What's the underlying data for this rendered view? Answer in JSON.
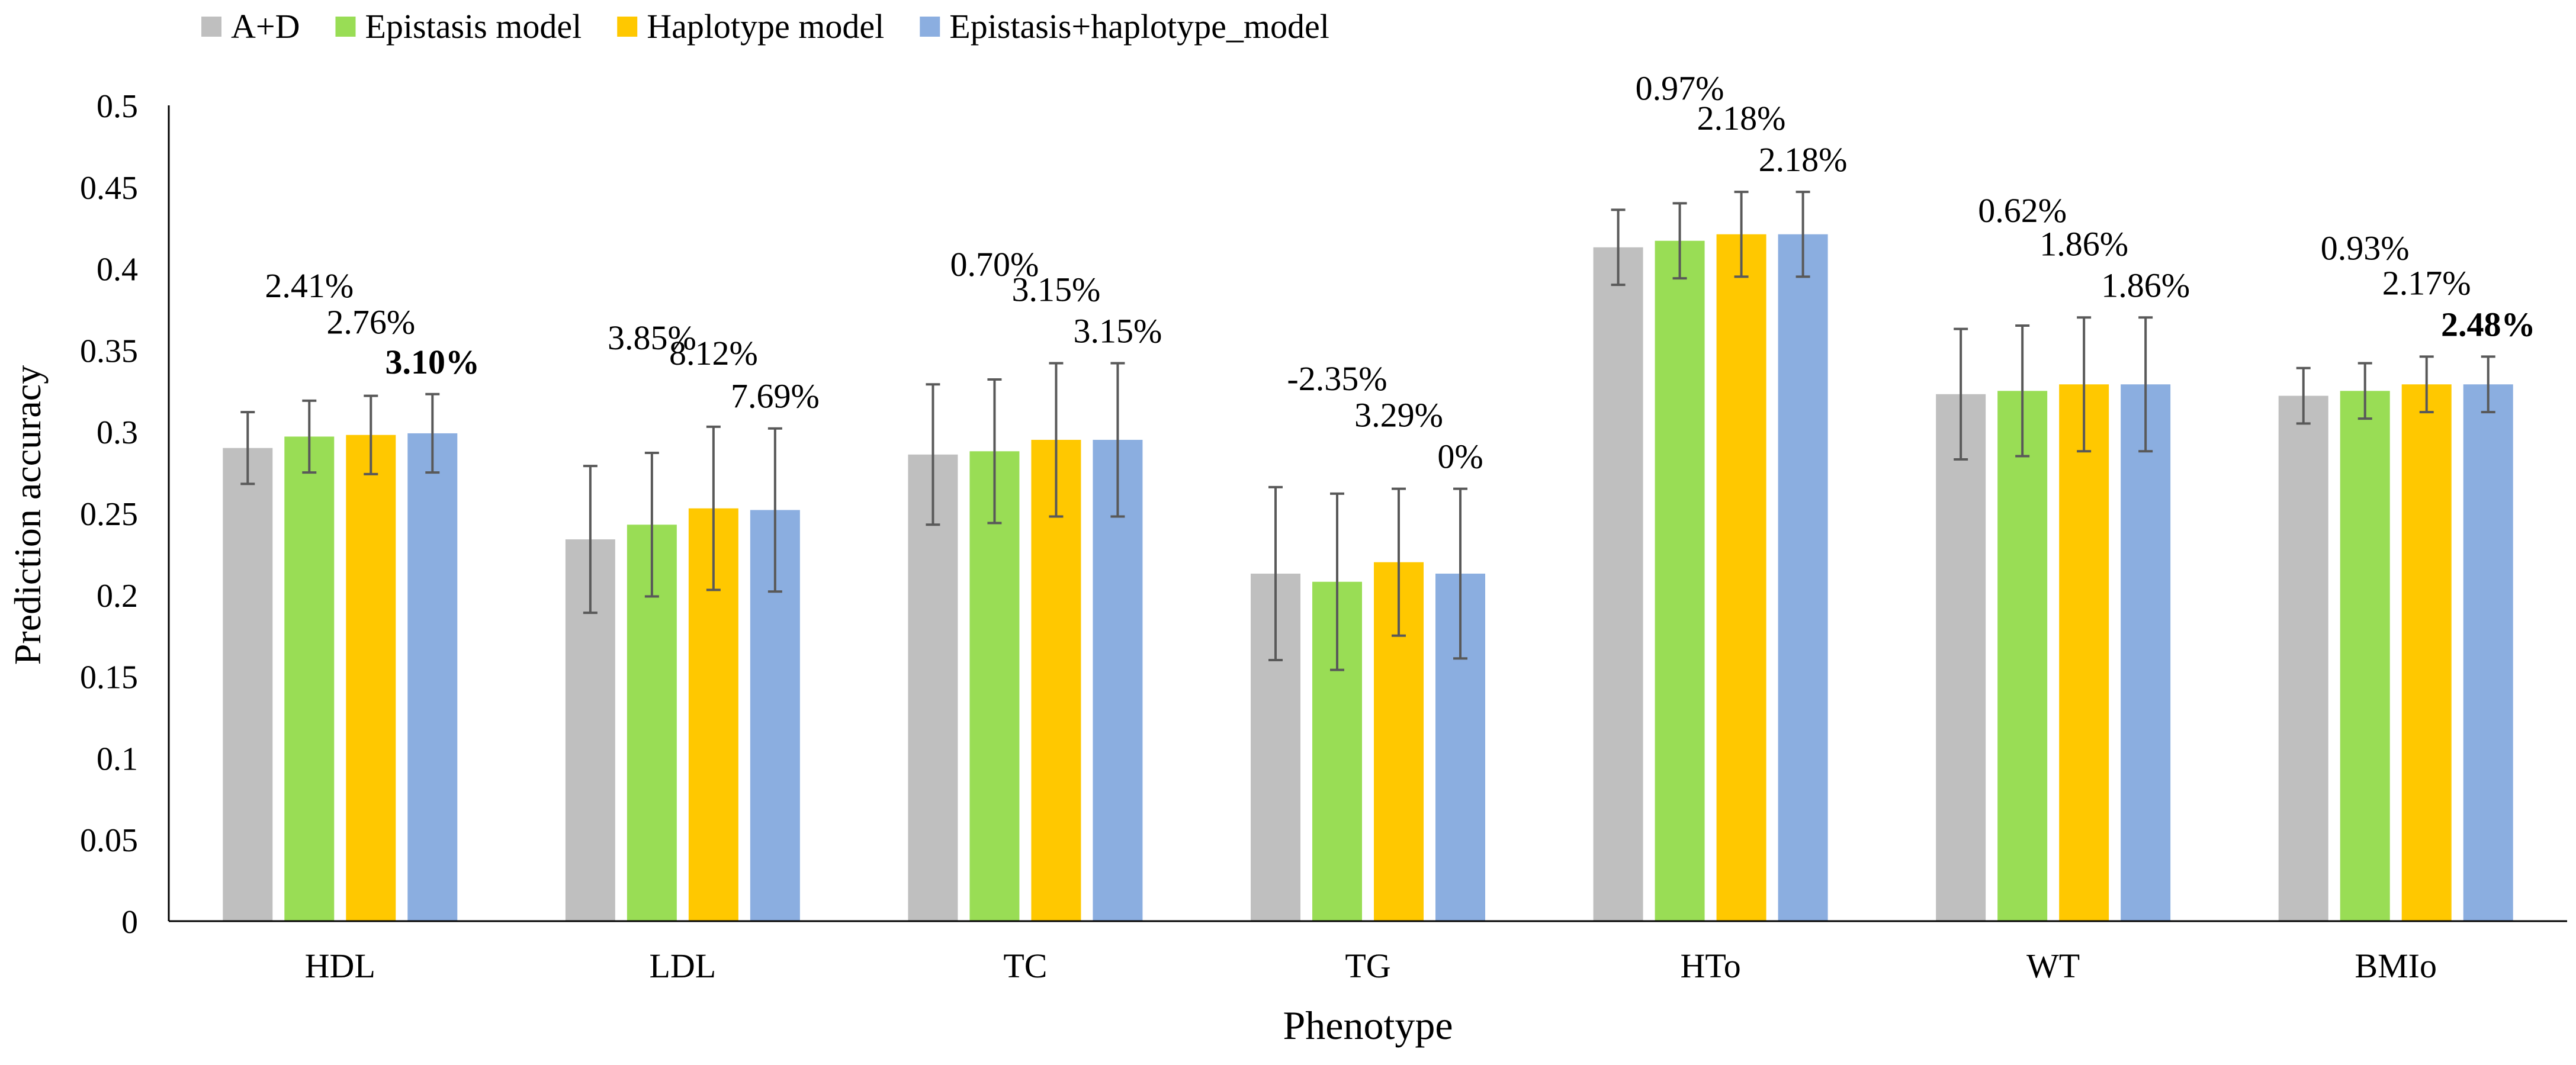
{
  "chart_data": {
    "type": "bar",
    "title": "",
    "xlabel": "Phenotype",
    "ylabel": "Prediction accuracy",
    "ylim": [
      0,
      0.5
    ],
    "yticks": [
      "0",
      "0.05",
      "0.1",
      "0.15",
      "0.2",
      "0.25",
      "0.3",
      "0.35",
      "0.4",
      "0.45",
      "0.5"
    ],
    "grid": false,
    "legend_position": "top-left",
    "categories": [
      "HDL",
      "LDL",
      "TC",
      "TG",
      "HTo",
      "WT",
      "BMIo"
    ],
    "series": [
      {
        "name": "A+D",
        "color": "#BFBFBF",
        "values": [
          0.29,
          0.234,
          0.286,
          0.213,
          0.413,
          0.323,
          0.322
        ],
        "errors": [
          0.022,
          0.045,
          0.043,
          0.053,
          0.023,
          0.04,
          0.017
        ],
        "labels": [
          "",
          "",
          "",
          "",
          "",
          "",
          ""
        ]
      },
      {
        "name": "Epistasis model",
        "color": "#99DD55",
        "values": [
          0.297,
          0.243,
          0.288,
          0.208,
          0.417,
          0.325,
          0.325
        ],
        "errors": [
          0.022,
          0.044,
          0.044,
          0.054,
          0.023,
          0.04,
          0.017
        ],
        "labels": [
          "2.41%",
          "3.85%",
          "0.70%",
          "-2.35%",
          "0.97%",
          "0.62%",
          "0.93%"
        ]
      },
      {
        "name": "Haplotype model",
        "color": "#FFC800",
        "values": [
          0.298,
          0.253,
          0.295,
          0.22,
          0.421,
          0.329,
          0.329
        ],
        "errors": [
          0.024,
          0.05,
          0.047,
          0.045,
          0.026,
          0.041,
          0.017
        ],
        "labels": [
          "2.76%",
          "8.12%",
          "3.15%",
          "3.29%",
          "2.18%",
          "1.86%",
          "2.17%"
        ]
      },
      {
        "name": "Epistasis+haplotype_model",
        "color": "#8BAEE0",
        "values": [
          0.299,
          0.252,
          0.295,
          0.213,
          0.421,
          0.329,
          0.329
        ],
        "errors": [
          0.024,
          0.05,
          0.047,
          0.052,
          0.026,
          0.041,
          0.017
        ],
        "labels": [
          "3.10%",
          "7.69%",
          "3.15%",
          "0%",
          "2.18%",
          "1.86%",
          "2.48%"
        ]
      }
    ],
    "highlighted_labels": [
      {
        "series": 3,
        "category": 0,
        "color": "#FF0000"
      },
      {
        "series": 3,
        "category": 6,
        "color": "#FF0000"
      }
    ]
  }
}
